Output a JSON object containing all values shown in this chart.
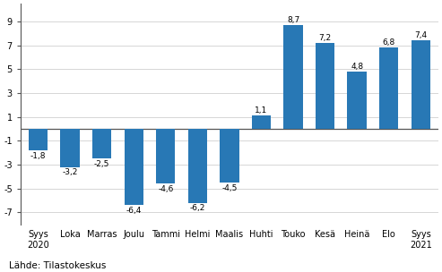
{
  "categories": [
    "Syys\n2020",
    "Loka",
    "Marras",
    "Joulu",
    "Tammi",
    "Helmi",
    "Maalis",
    "Huhti",
    "Touko",
    "Kesä",
    "Heinä",
    "Elo",
    "Syys\n2021"
  ],
  "values": [
    -1.8,
    -3.2,
    -2.5,
    -6.4,
    -4.6,
    -6.2,
    -4.5,
    1.1,
    8.7,
    7.2,
    4.8,
    6.8,
    7.4
  ],
  "bar_color": "#2878b5",
  "ylim_min": -8.0,
  "ylim_max": 10.5,
  "yticks": [
    -7,
    -5,
    -3,
    -1,
    1,
    3,
    5,
    7,
    9
  ],
  "source_text": "Lähde: Tilastokeskus",
  "label_fontsize": 6.5,
  "tick_fontsize": 7.0,
  "source_fontsize": 7.5,
  "bar_width": 0.6
}
